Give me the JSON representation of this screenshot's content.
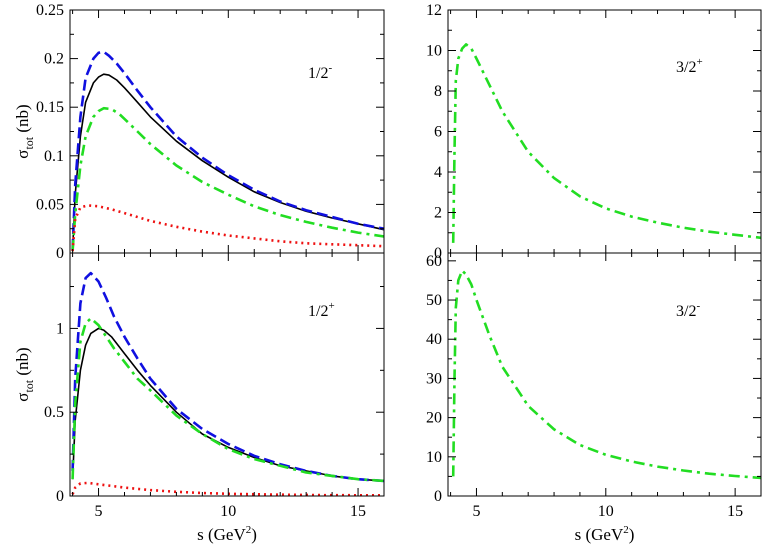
{
  "chart_data": [
    {
      "type": "line",
      "panel": "top-left",
      "label": "1/2^-",
      "ylabel": "σ_tot (nb)",
      "xlabel": "",
      "xlim": [
        3.9,
        16
      ],
      "ylim": [
        0,
        0.25
      ],
      "xticks": [
        5,
        10,
        15
      ],
      "yticks": [
        0,
        0.05,
        0.1,
        0.15,
        0.2,
        0.25
      ],
      "ytick_labels": [
        "0",
        "0.05",
        "0.1",
        "0.15",
        "0.2",
        "0.25"
      ],
      "show_xtick_labels": false,
      "series": [
        {
          "name": "total",
          "color": "#000000",
          "style": "solid",
          "x": [
            4.0,
            4.1,
            4.3,
            4.5,
            4.8,
            5.0,
            5.2,
            5.4,
            5.7,
            6.0,
            6.5,
            7.0,
            8.0,
            9.0,
            10.0,
            11.0,
            12.0,
            13.0,
            14.0,
            15.0,
            16.0
          ],
          "y": [
            0.003,
            0.06,
            0.12,
            0.155,
            0.175,
            0.181,
            0.184,
            0.183,
            0.178,
            0.17,
            0.155,
            0.14,
            0.115,
            0.095,
            0.078,
            0.063,
            0.052,
            0.043,
            0.036,
            0.03,
            0.024
          ]
        },
        {
          "name": "dashed",
          "color": "#1010e0",
          "style": "dashed",
          "x": [
            4.0,
            4.1,
            4.3,
            4.5,
            4.8,
            5.0,
            5.2,
            5.4,
            5.7,
            6.0,
            6.5,
            7.0,
            8.0,
            9.0,
            10.0,
            11.0,
            12.0,
            13.0,
            14.0,
            15.0,
            16.0
          ],
          "y": [
            0.003,
            0.07,
            0.14,
            0.18,
            0.2,
            0.206,
            0.207,
            0.203,
            0.195,
            0.185,
            0.167,
            0.15,
            0.12,
            0.098,
            0.08,
            0.065,
            0.053,
            0.044,
            0.037,
            0.03,
            0.025
          ]
        },
        {
          "name": "dash-dot",
          "color": "#22dd22",
          "style": "dashdot",
          "x": [
            4.0,
            4.1,
            4.3,
            4.5,
            4.8,
            5.0,
            5.2,
            5.5,
            5.8,
            6.0,
            6.5,
            7.0,
            8.0,
            9.0,
            10.0,
            11.0,
            12.0,
            13.0,
            14.0,
            15.0,
            16.0
          ],
          "y": [
            0.002,
            0.04,
            0.09,
            0.12,
            0.14,
            0.146,
            0.149,
            0.148,
            0.143,
            0.138,
            0.125,
            0.112,
            0.09,
            0.073,
            0.06,
            0.048,
            0.039,
            0.032,
            0.026,
            0.021,
            0.017
          ]
        },
        {
          "name": "dotted",
          "color": "#ee1111",
          "style": "dotted",
          "x": [
            4.0,
            4.1,
            4.3,
            4.6,
            5.0,
            5.5,
            6.0,
            7.0,
            8.0,
            9.0,
            10.0,
            11.0,
            12.0,
            13.0,
            14.0,
            15.0,
            16.0
          ],
          "y": [
            0.002,
            0.035,
            0.047,
            0.049,
            0.048,
            0.045,
            0.041,
            0.033,
            0.027,
            0.022,
            0.018,
            0.015,
            0.012,
            0.01,
            0.009,
            0.008,
            0.007
          ]
        }
      ]
    },
    {
      "type": "line",
      "panel": "top-right",
      "label": "3/2^+",
      "ylabel": "",
      "xlabel": "",
      "xlim": [
        3.9,
        16
      ],
      "ylim": [
        0,
        12
      ],
      "xticks": [
        5,
        10,
        15
      ],
      "yticks": [
        0,
        2,
        4,
        6,
        8,
        10,
        12
      ],
      "ytick_labels": [
        "0",
        "2",
        "4",
        "6",
        "8",
        "10",
        "12"
      ],
      "show_xtick_labels": false,
      "series": [
        {
          "name": "dash-dot",
          "color": "#22dd22",
          "style": "dashdot",
          "x": [
            4.1,
            4.15,
            4.2,
            4.3,
            4.45,
            4.6,
            4.8,
            5.0,
            5.5,
            6.0,
            7.0,
            8.0,
            9.0,
            10.0,
            11.0,
            12.0,
            13.0,
            14.0,
            15.0,
            16.0
          ],
          "y": [
            0.5,
            5.0,
            8.5,
            9.6,
            10.1,
            10.3,
            10.1,
            9.6,
            8.3,
            7.0,
            5.0,
            3.7,
            2.8,
            2.2,
            1.8,
            1.5,
            1.25,
            1.05,
            0.9,
            0.75
          ]
        }
      ]
    },
    {
      "type": "line",
      "panel": "bottom-left",
      "label": "1/2^+",
      "ylabel": "σ_tot (nb)",
      "xlabel": "s (GeV^2)",
      "xlim": [
        3.9,
        16
      ],
      "ylim": [
        0,
        1.45
      ],
      "xticks": [
        5,
        10,
        15
      ],
      "xtick_labels": [
        "5",
        "10",
        "15"
      ],
      "yticks": [
        0,
        0.5,
        1
      ],
      "ytick_labels": [
        "0",
        "0.5",
        "1"
      ],
      "show_xtick_labels": true,
      "series": [
        {
          "name": "total",
          "color": "#000000",
          "style": "solid",
          "x": [
            4.0,
            4.1,
            4.3,
            4.5,
            4.7,
            5.0,
            5.2,
            5.5,
            6.0,
            6.5,
            7.0,
            8.0,
            9.0,
            10.0,
            11.0,
            12.0,
            13.0,
            14.0,
            15.0,
            16.0
          ],
          "y": [
            0.1,
            0.45,
            0.75,
            0.9,
            0.97,
            1.0,
            0.99,
            0.95,
            0.85,
            0.75,
            0.66,
            0.5,
            0.37,
            0.29,
            0.23,
            0.18,
            0.15,
            0.12,
            0.1,
            0.09
          ]
        },
        {
          "name": "dashed",
          "color": "#1010e0",
          "style": "dashed",
          "x": [
            4.0,
            4.1,
            4.3,
            4.5,
            4.7,
            5.0,
            5.3,
            5.6,
            6.0,
            6.5,
            7.0,
            8.0,
            9.0,
            10.0,
            11.0,
            12.0,
            13.0,
            14.0,
            15.0,
            16.0
          ],
          "y": [
            0.15,
            0.7,
            1.15,
            1.3,
            1.33,
            1.28,
            1.18,
            1.07,
            0.95,
            0.82,
            0.7,
            0.52,
            0.4,
            0.31,
            0.24,
            0.19,
            0.15,
            0.12,
            0.1,
            0.09
          ]
        },
        {
          "name": "dash-dot",
          "color": "#22dd22",
          "style": "dashdot",
          "x": [
            4.0,
            4.1,
            4.3,
            4.5,
            4.7,
            5.0,
            5.3,
            5.6,
            6.0,
            6.5,
            7.0,
            8.0,
            9.0,
            10.0,
            11.0,
            12.0,
            13.0,
            14.0,
            15.0,
            16.0
          ],
          "y": [
            0.1,
            0.55,
            0.92,
            1.03,
            1.06,
            1.02,
            0.95,
            0.88,
            0.8,
            0.7,
            0.63,
            0.48,
            0.37,
            0.28,
            0.22,
            0.18,
            0.14,
            0.12,
            0.1,
            0.09
          ]
        },
        {
          "name": "dotted",
          "color": "#ee1111",
          "style": "dotted",
          "x": [
            4.0,
            4.1,
            4.3,
            4.6,
            5.0,
            5.5,
            6.0,
            7.0,
            8.0,
            9.0,
            10.0,
            12.0,
            14.0,
            16.0
          ],
          "y": [
            0.01,
            0.05,
            0.075,
            0.078,
            0.07,
            0.06,
            0.05,
            0.035,
            0.025,
            0.018,
            0.013,
            0.008,
            0.005,
            0.004
          ]
        }
      ]
    },
    {
      "type": "line",
      "panel": "bottom-right",
      "label": "3/2^-",
      "ylabel": "",
      "xlabel": "s (GeV^2)",
      "xlim": [
        3.9,
        16
      ],
      "ylim": [
        0,
        62
      ],
      "xticks": [
        5,
        10,
        15
      ],
      "xtick_labels": [
        "5",
        "10",
        "15"
      ],
      "yticks": [
        0,
        10,
        20,
        30,
        40,
        50,
        60
      ],
      "ytick_labels": [
        "0",
        "10",
        "20",
        "30",
        "40",
        "50",
        "60"
      ],
      "show_xtick_labels": true,
      "series": [
        {
          "name": "dash-dot",
          "color": "#22dd22",
          "style": "dashdot",
          "x": [
            4.1,
            4.15,
            4.2,
            4.3,
            4.45,
            4.6,
            4.8,
            5.0,
            5.5,
            6.0,
            7.0,
            8.0,
            9.0,
            10.0,
            11.0,
            12.0,
            13.0,
            14.0,
            15.0,
            16.0
          ],
          "y": [
            5.0,
            30.0,
            48.0,
            55.0,
            57.5,
            56.5,
            54.0,
            50.0,
            41.0,
            33.0,
            23.0,
            17.0,
            13.0,
            10.5,
            8.8,
            7.5,
            6.5,
            5.7,
            5.1,
            4.6
          ]
        }
      ]
    }
  ]
}
